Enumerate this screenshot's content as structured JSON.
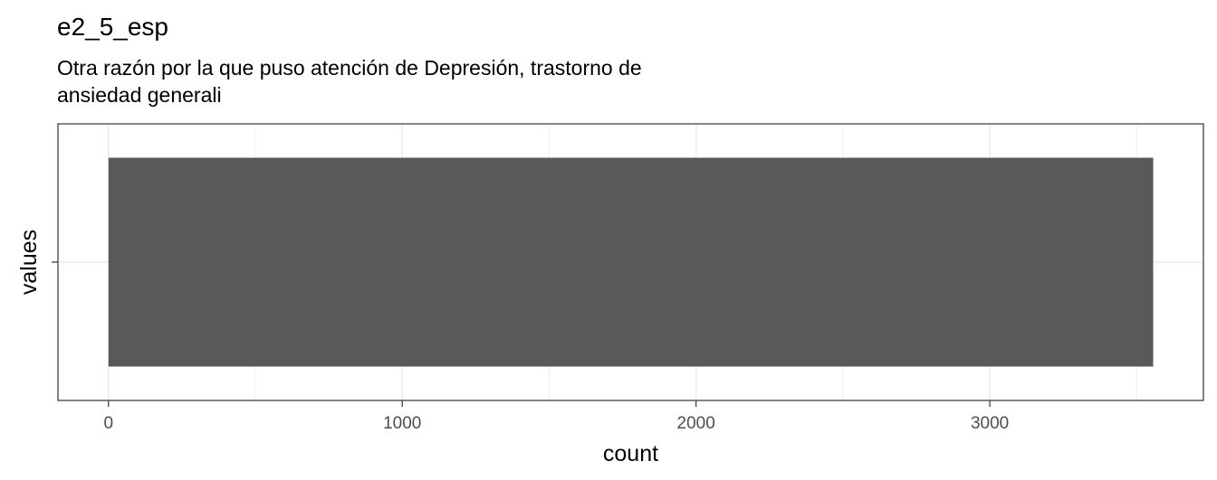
{
  "chart_data": {
    "type": "bar",
    "orientation": "horizontal",
    "title": "e2_5_esp",
    "subtitle_lines": [
      "Otra razón por la que puso atención de Depresión, trastorno de",
      "ansiedad generali"
    ],
    "xlabel": "count",
    "ylabel": "values",
    "categories": [
      ""
    ],
    "values": [
      3556
    ],
    "xlim": [
      -172,
      3727
    ],
    "xticks": [
      0,
      1000,
      2000,
      3000
    ],
    "xtick_labels": [
      "0",
      "1000",
      "2000",
      "3000"
    ],
    "grid": true,
    "bar_color": "#595959",
    "grid_color": "#ebebeb",
    "legend": "none"
  }
}
